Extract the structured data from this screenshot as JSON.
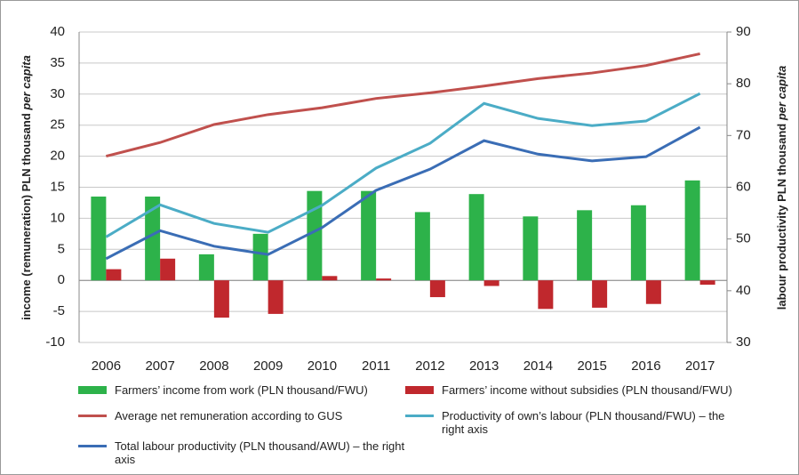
{
  "chart_data": {
    "type": "bar",
    "y_label": "income (remuneration) PLN thousand",
    "y_label_italic": "per capita",
    "y2_label": "labour productivity PLN thousand",
    "y2_label_italic": "per capita",
    "categories": [
      "2006",
      "2007",
      "2008",
      "2009",
      "2010",
      "2011",
      "2012",
      "2013",
      "2014",
      "2015",
      "2016",
      "2017"
    ],
    "series": [
      {
        "name": "Farmers’ income from work (PLN thousand/FWU)",
        "type": "bar",
        "color": "#2db24a",
        "values": [
          13.5,
          13.5,
          4.2,
          7.5,
          14.4,
          14.4,
          11.0,
          13.9,
          10.3,
          11.3,
          12.1,
          16.1
        ]
      },
      {
        "name": "Farmers’ income without subsidies (PLN thousand/FWU)",
        "type": "bar",
        "color": "#c0282d",
        "values": [
          1.8,
          3.5,
          -6.0,
          -5.4,
          0.7,
          0.3,
          -2.7,
          -0.9,
          -4.6,
          -4.4,
          -3.8,
          -0.7
        ]
      },
      {
        "name": "Average net remuneration according to GUS",
        "type": "line",
        "color": "#c0504d",
        "values": [
          20.0,
          22.2,
          25.1,
          26.7,
          27.8,
          29.3,
          30.2,
          31.3,
          32.5,
          33.4,
          34.6,
          36.5
        ]
      },
      {
        "name": "Productivity of own’s labour (PLN thousand/FWU) – the right axis",
        "type": "line",
        "color": "#4bacc6",
        "axis": "y2",
        "values": [
          50.4,
          56.6,
          53.0,
          51.3,
          56.5,
          63.7,
          68.5,
          76.2,
          73.3,
          71.9,
          72.8,
          78.1
        ]
      },
      {
        "name": "Total labour productivity (PLN thousand/AWU) – the right axis",
        "type": "line",
        "color": "#3a6db5",
        "axis": "y2",
        "values": [
          46.2,
          51.6,
          48.6,
          47.0,
          52.2,
          59.4,
          63.5,
          69.0,
          66.4,
          65.1,
          65.9,
          71.6
        ]
      }
    ],
    "ylim": [
      -10,
      40
    ],
    "yticks": [
      -10,
      -5,
      0,
      5,
      10,
      15,
      20,
      25,
      30,
      35,
      40
    ],
    "y2lim": [
      30,
      90
    ],
    "y2ticks": [
      30,
      40,
      50,
      60,
      70,
      80,
      90
    ],
    "grid": true,
    "legend": "bottom"
  }
}
